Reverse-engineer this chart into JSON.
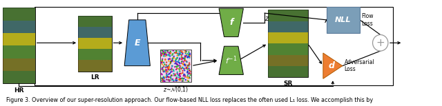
{
  "caption": "Figure 3. Overview of our super-resolution approach. Our flow-based NLL loss replaces the often used L₁ loss. We accomplish this by",
  "fig_width": 6.4,
  "fig_height": 1.54,
  "bg_color": "#ffffff",
  "hr_label": "HR",
  "lr_label": "LR",
  "sr_label": "SR",
  "encoder_label": "E",
  "encoder_color": "#5B9BD5",
  "flow_f_label": "f",
  "flow_finv_label": "f^{-1}",
  "flow_color": "#70AD47",
  "z_label": "z",
  "noise_label": "z~\\mathcal{N}(0,1)",
  "nll_label": "NLL",
  "nll_color": "#7B9EB8",
  "disc_label": "d",
  "disc_color": "#ED7D31",
  "flow_loss_label": "Flow\nLoss",
  "adv_loss_label": "Adversarial\nLoss",
  "arrow_color": "#000000",
  "plus_color": "#999999"
}
